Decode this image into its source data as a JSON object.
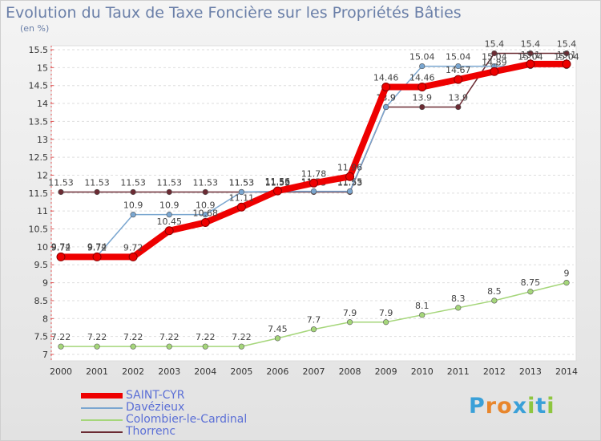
{
  "title": "Evolution du Taux de Taxe Foncière sur les Propriétés Bâties",
  "unit_label": "(en %)",
  "brand": {
    "letters": [
      "P",
      "r",
      "o",
      "x",
      "i",
      "t",
      "i"
    ],
    "colors": [
      "#3aa0d8",
      "#e8862c",
      "#e8862c",
      "#3aa0d8",
      "#8ec63f",
      "#3aa0d8",
      "#8ec63f"
    ]
  },
  "chart_data": {
    "type": "line",
    "x": [
      "2000",
      "2001",
      "2002",
      "2003",
      "2004",
      "2005",
      "2006",
      "2007",
      "2008",
      "2009",
      "2010",
      "2011",
      "2012",
      "2013",
      "2014"
    ],
    "ylim": [
      7,
      15.5
    ],
    "yticks": [
      "7",
      "7.5",
      "8",
      "8.5",
      "9",
      "9.5",
      "10",
      "10.5",
      "11",
      "11.5",
      "12",
      "12.5",
      "13",
      "13.5",
      "14",
      "14.5",
      "15",
      "15.5"
    ],
    "grid": true,
    "series": [
      {
        "name": "Thorrenc",
        "color": "#6b2b33",
        "values": [
          11.53,
          11.53,
          11.53,
          11.53,
          11.53,
          11.53,
          11.53,
          11.53,
          11.53,
          13.9,
          13.9,
          13.9,
          15.4,
          15.4,
          15.4
        ],
        "labels": [
          "11.53",
          "11.53",
          "11.53",
          "11.53",
          "11.53",
          "11.53",
          "11.53",
          "11.53",
          "11.53",
          "13.9",
          "13.9",
          "13.9",
          "15.4",
          "15.4",
          "15.4"
        ]
      },
      {
        "name": "Colombier-le-Cardinal",
        "color": "#a5d67a",
        "values": [
          7.22,
          7.22,
          7.22,
          7.22,
          7.22,
          7.22,
          7.45,
          7.7,
          7.9,
          7.9,
          8.1,
          8.3,
          8.5,
          8.75,
          9
        ],
        "labels": [
          "7.22",
          "7.22",
          "7.22",
          "7.22",
          "7.22",
          "7.22",
          "7.45",
          "7.7",
          "7.9",
          "7.9",
          "8.1",
          "8.3",
          "8.5",
          "8.75",
          "9"
        ]
      },
      {
        "name": "Davézieux",
        "color": "#7aa6d0",
        "values": [
          9.74,
          9.74,
          10.9,
          10.9,
          10.9,
          11.53,
          11.55,
          11.55,
          11.55,
          13.9,
          15.04,
          15.04,
          15.04,
          15.04,
          15.04
        ],
        "labels": [
          "9.74",
          "9.74",
          "10.9",
          "10.9",
          "10.9",
          "11.53",
          "11.55",
          "11.55",
          "11.55",
          "13.9",
          "15.04",
          "15.04",
          "15.04",
          "15.04",
          "15.04"
        ]
      },
      {
        "name": "SAINT-CYR",
        "color": "#ee0000",
        "values": [
          9.72,
          9.72,
          9.72,
          10.45,
          10.68,
          11.11,
          11.56,
          11.78,
          11.96,
          14.46,
          14.46,
          14.67,
          14.89,
          15.1,
          15.1
        ],
        "labels": [
          "9.72",
          "9.72",
          "9.72",
          "10.45",
          "10.68",
          "11.11",
          "11.56",
          "11.78",
          "11.96",
          "14.46",
          "14.46",
          "14.67",
          "14.89",
          "15.1",
          "15.1"
        ]
      }
    ],
    "legend": [
      "SAINT-CYR",
      "Davézieux",
      "Colombier-le-Cardinal",
      "Thorrenc"
    ]
  }
}
